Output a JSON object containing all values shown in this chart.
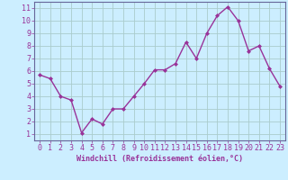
{
  "x": [
    0,
    1,
    2,
    3,
    4,
    5,
    6,
    7,
    8,
    9,
    10,
    11,
    12,
    13,
    14,
    15,
    16,
    17,
    18,
    19,
    20,
    21,
    22,
    23
  ],
  "y": [
    5.7,
    5.4,
    4.0,
    3.7,
    1.1,
    2.2,
    1.8,
    3.0,
    3.0,
    4.0,
    5.0,
    6.1,
    6.1,
    6.6,
    8.3,
    7.0,
    9.0,
    10.4,
    11.1,
    10.0,
    7.6,
    8.0,
    6.2,
    4.8
  ],
  "line_color": "#993399",
  "marker": "D",
  "marker_size": 2,
  "line_width": 1.0,
  "bg_color": "#cceeff",
  "grid_color": "#aacccc",
  "xlabel": "Windchill (Refroidissement éolien,°C)",
  "xlabel_fontsize": 6,
  "tick_fontsize": 6,
  "xlim": [
    -0.5,
    23.5
  ],
  "ylim": [
    0.5,
    11.5
  ],
  "yticks": [
    1,
    2,
    3,
    4,
    5,
    6,
    7,
    8,
    9,
    10,
    11
  ],
  "xticks": [
    0,
    1,
    2,
    3,
    4,
    5,
    6,
    7,
    8,
    9,
    10,
    11,
    12,
    13,
    14,
    15,
    16,
    17,
    18,
    19,
    20,
    21,
    22,
    23
  ],
  "spine_color": "#666699",
  "text_color": "#993399"
}
